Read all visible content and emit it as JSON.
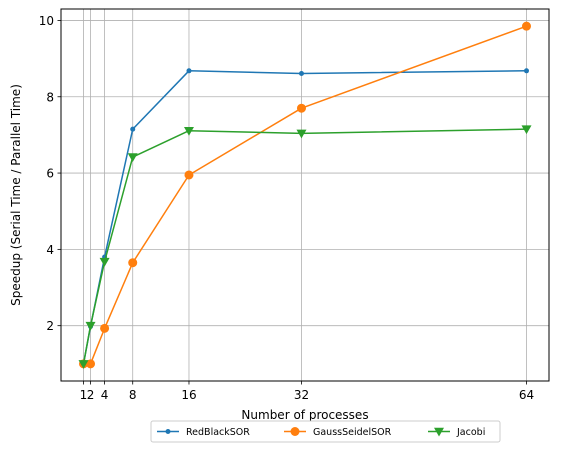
{
  "chart_data": {
    "type": "line",
    "title": "",
    "xlabel": "Number of processes",
    "ylabel": "Speedup (Serial Time / Parallel Time)",
    "xlim": [
      -2.2,
      67.2
    ],
    "ylim": [
      0.55,
      10.3
    ],
    "x_ticks": [
      1,
      2,
      4,
      8,
      16,
      32,
      64
    ],
    "y_ticks": [
      2,
      4,
      6,
      8,
      10
    ],
    "grid": true,
    "legend_placement": "bottom-center-outside",
    "x": [
      1,
      2,
      4,
      8,
      16,
      32,
      64
    ],
    "series": [
      {
        "name": "RedBlackSOR",
        "color": "#1f77b4",
        "marker": "point",
        "values": [
          1.0,
          1.98,
          3.8,
          7.15,
          8.68,
          8.61,
          8.68
        ]
      },
      {
        "name": "GaussSeidelSOR",
        "color": "#ff7f0e",
        "marker": "circle",
        "values": [
          1.0,
          1.0,
          1.93,
          3.65,
          5.95,
          7.7,
          9.85
        ]
      },
      {
        "name": "Jacobi",
        "color": "#2ca02c",
        "marker": "triangle-down",
        "values": [
          1.0,
          2.0,
          3.68,
          6.42,
          7.11,
          7.04,
          7.15
        ]
      }
    ]
  }
}
